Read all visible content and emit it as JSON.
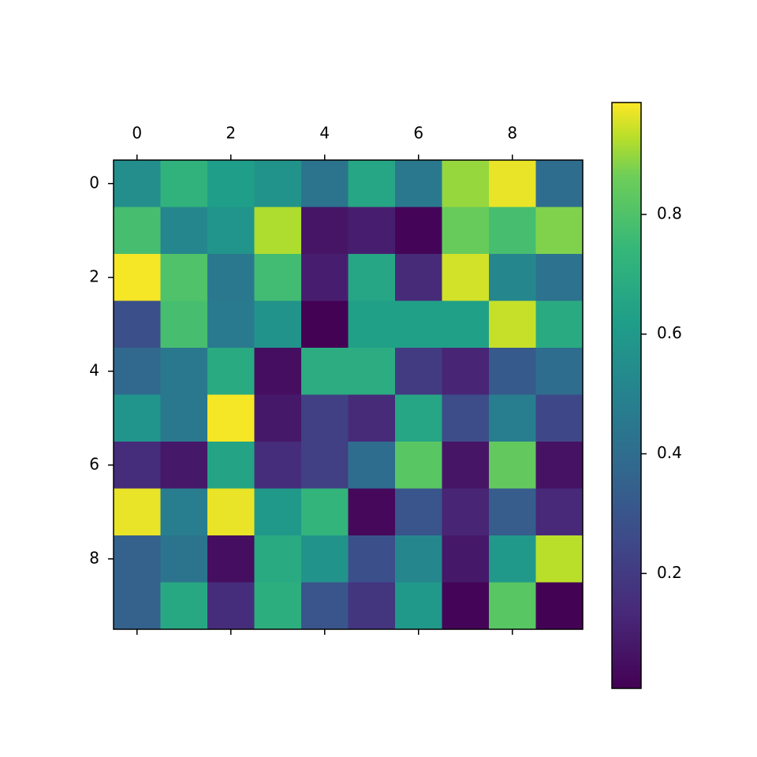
{
  "chart_data": {
    "type": "heatmap",
    "colormap": "viridis",
    "values": [
      [
        0.55,
        0.72,
        0.62,
        0.57,
        0.43,
        0.66,
        0.45,
        0.9,
        0.97,
        0.4
      ],
      [
        0.78,
        0.52,
        0.58,
        0.92,
        0.07,
        0.1,
        0.02,
        0.85,
        0.78,
        0.88
      ],
      [
        0.98,
        0.8,
        0.45,
        0.77,
        0.1,
        0.66,
        0.14,
        0.95,
        0.52,
        0.42
      ],
      [
        0.28,
        0.78,
        0.46,
        0.57,
        0.01,
        0.63,
        0.63,
        0.63,
        0.94,
        0.68
      ],
      [
        0.38,
        0.45,
        0.68,
        0.05,
        0.69,
        0.69,
        0.2,
        0.12,
        0.32,
        0.4
      ],
      [
        0.58,
        0.45,
        0.98,
        0.08,
        0.22,
        0.14,
        0.66,
        0.27,
        0.48,
        0.25
      ],
      [
        0.15,
        0.08,
        0.65,
        0.15,
        0.22,
        0.4,
        0.82,
        0.07,
        0.84,
        0.06
      ],
      [
        0.97,
        0.48,
        0.97,
        0.6,
        0.73,
        0.03,
        0.3,
        0.12,
        0.33,
        0.13
      ],
      [
        0.35,
        0.43,
        0.05,
        0.68,
        0.57,
        0.28,
        0.52,
        0.08,
        0.6,
        0.93
      ],
      [
        0.35,
        0.67,
        0.15,
        0.7,
        0.3,
        0.18,
        0.6,
        0.02,
        0.82,
        0.01
      ]
    ],
    "xlim": [
      -0.5,
      9.5
    ],
    "ylim": [
      -0.5,
      9.5
    ],
    "xticks": [
      0,
      2,
      4,
      6,
      8
    ],
    "yticks": [
      0,
      2,
      4,
      6,
      8
    ],
    "clim": [
      0.008,
      0.987
    ],
    "cticks": [
      0.2,
      0.4,
      0.6,
      0.8
    ]
  }
}
